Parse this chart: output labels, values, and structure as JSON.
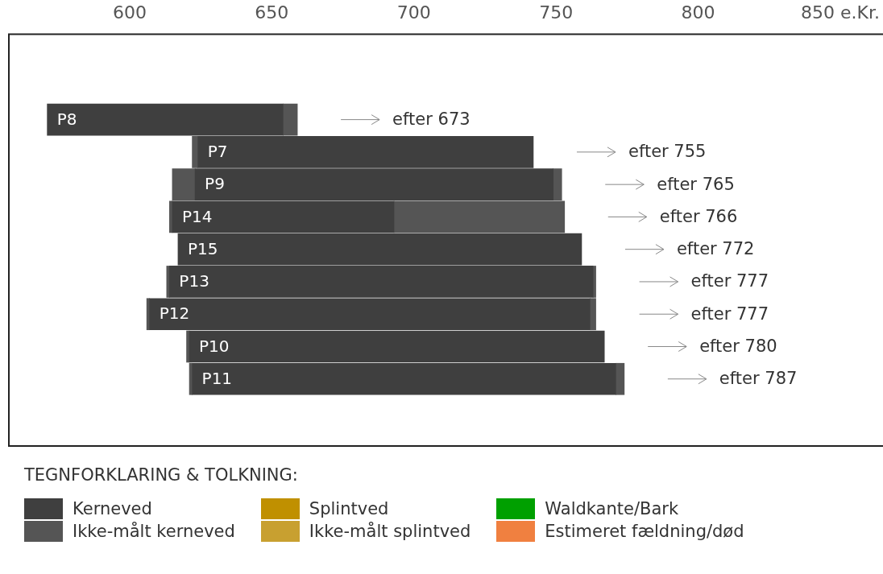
{
  "chart_data": {
    "type": "bar",
    "orientation": "horizontal",
    "categories": [
      "P8",
      "P7",
      "P9",
      "P14",
      "P15",
      "P13",
      "P12",
      "P10",
      "P11"
    ],
    "series": [
      {
        "name": "Kerneved",
        "color": "#3f3f3f",
        "base": [
          571,
          624,
          623,
          615,
          617,
          614,
          607,
          621,
          622
        ],
        "values": [
          83,
          118,
          126,
          78,
          142,
          149,
          155,
          146,
          149
        ]
      },
      {
        "name": "Ikke-målt kerneved",
        "color": "#555555",
        "base": [
          654,
          null,
          749,
          693,
          null,
          763,
          762,
          null,
          771
        ],
        "values": [
          5,
          null,
          3,
          60,
          null,
          1,
          2,
          null,
          3
        ]
      },
      {
        "color": "#555555",
        "base": [
          null,
          622,
          615,
          614,
          null,
          613,
          606,
          620,
          621
        ],
        "values": [
          null,
          2,
          8,
          1,
          null,
          1,
          1,
          1,
          1
        ]
      },
      {
        "name": "Splintved",
        "color": "#c09000",
        "values": [
          null,
          null,
          null,
          null,
          null,
          null,
          null,
          null,
          null
        ]
      },
      {
        "name": "Ikke-målt splintved",
        "color": "#c8a030",
        "values": [
          null,
          null,
          null,
          null,
          null,
          null,
          null,
          null,
          null
        ]
      },
      {
        "name": "Waldkante/Bark",
        "color": "#00a000",
        "values": [
          null,
          null,
          null,
          null,
          null,
          null,
          null,
          null,
          null
        ]
      },
      {
        "name": "Estimeret fældning/død",
        "color": "#f08040",
        "values": [
          null,
          null,
          null,
          null,
          null,
          null,
          null,
          null,
          null
        ]
      }
    ],
    "xlim": [
      557.5,
      865
    ],
    "xticks": [
      600,
      650,
      700,
      750,
      800,
      {
        "value": 850,
        "label": "850 e.Kr."
      }
    ],
    "grid": false,
    "legend": "bottom",
    "legend_title": "TEGNFORKLARING & TOLKNING:",
    "annotations": [
      "efter 673",
      "efter 755",
      "efter 765",
      "efter 766",
      "efter 772",
      "efter 777",
      "efter 777",
      "efter 780",
      "efter 787"
    ]
  }
}
